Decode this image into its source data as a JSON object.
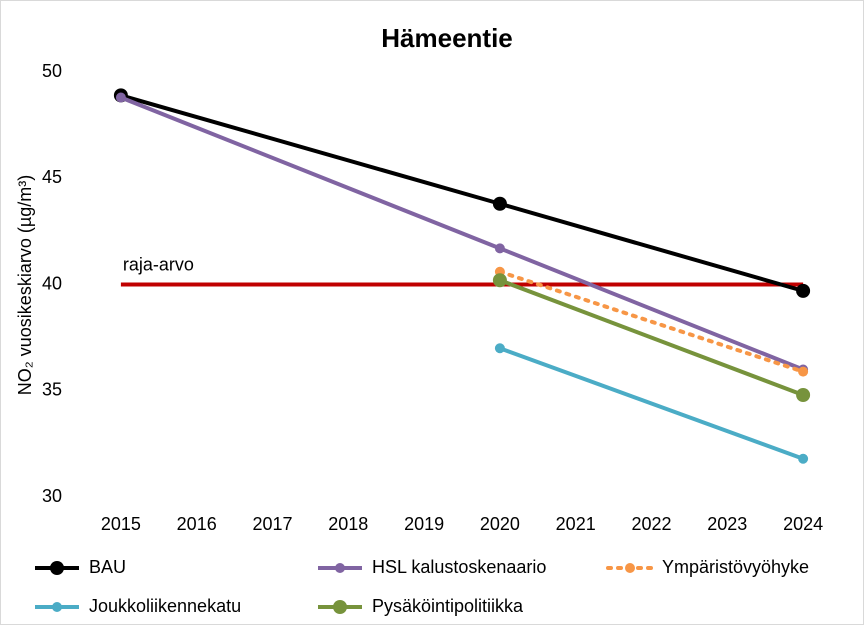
{
  "chart_data": {
    "type": "line",
    "title": "Hämeentie",
    "y_label": "NO₂ vuosikeskiarvo (µg/m³)",
    "x": [
      2015,
      2020,
      2024
    ],
    "xlim": [
      2014.5,
      2024.5
    ],
    "xticks": [
      2015,
      2016,
      2017,
      2018,
      2019,
      2020,
      2021,
      2022,
      2023,
      2024
    ],
    "ylim": [
      30,
      50
    ],
    "yticks": [
      30,
      35,
      40,
      45,
      50
    ],
    "grid": false,
    "legend": "bottom",
    "reference_line": {
      "value": 40,
      "label": "raja-arvo",
      "color": "#c00000"
    },
    "series": [
      {
        "name": "BAU",
        "color": "#000000",
        "values": [
          48.9,
          43.8,
          39.7
        ]
      },
      {
        "name": "HSL kalustoskenaario",
        "color": "#8064a2",
        "values": [
          48.8,
          41.7,
          36.0
        ]
      },
      {
        "name": "Ympäristövyöhyke",
        "color": "#f79646",
        "line_style": "dotted",
        "values": [
          null,
          40.6,
          35.9
        ]
      },
      {
        "name": "Joukkoliikennekatu",
        "color": "#4bacc6",
        "values": [
          null,
          37.0,
          31.8
        ]
      },
      {
        "name": "Pysäköintipolitiikka",
        "color": "#77933c",
        "values": [
          null,
          40.2,
          34.8
        ]
      }
    ]
  }
}
